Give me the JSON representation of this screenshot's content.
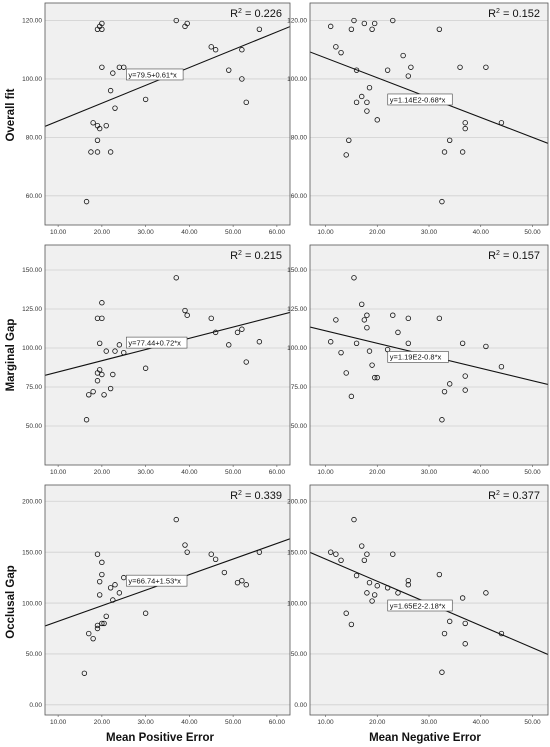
{
  "chart_data": [
    {
      "type": "scatter",
      "row": 0,
      "col": 0,
      "r2": "0.226",
      "equation": "y=79.5+0.61*x",
      "xlim": [
        7,
        63
      ],
      "ylim": [
        50,
        126
      ],
      "xticks": [
        10,
        20,
        30,
        40,
        50,
        60
      ],
      "yticks": [
        60,
        80,
        100,
        120
      ],
      "fit": [
        79.5,
        0.61
      ],
      "x": [
        16.5,
        17.5,
        18,
        19,
        19,
        19,
        19,
        19.5,
        19.5,
        20,
        20,
        20,
        21,
        22,
        22,
        22.5,
        23,
        24,
        25,
        30,
        37,
        39,
        39.5,
        45,
        46,
        49,
        52,
        52,
        53,
        56
      ],
      "y": [
        58,
        75,
        85,
        75,
        79,
        84,
        117,
        118,
        83,
        104,
        117,
        119,
        84,
        75,
        96,
        102,
        90,
        104,
        104,
        93,
        120,
        118,
        119,
        111,
        110,
        103,
        110,
        100,
        92,
        117
      ]
    },
    {
      "type": "scatter",
      "row": 0,
      "col": 1,
      "r2": "0.152",
      "equation": "y=1.14E2-0.68*x",
      "xlim": [
        7,
        53
      ],
      "ylim": [
        50,
        126
      ],
      "xticks": [
        10,
        20,
        30,
        40,
        50
      ],
      "yticks": [
        60,
        80,
        100,
        120
      ],
      "fit": [
        114,
        -0.68
      ],
      "x": [
        11,
        12,
        13,
        14,
        14.5,
        15,
        15.5,
        16,
        16,
        17,
        17.5,
        18,
        18,
        18.5,
        19,
        19.5,
        20,
        22,
        23,
        25,
        26,
        26.5,
        32,
        32.5,
        33,
        34,
        36,
        36.5,
        37,
        37,
        41,
        44
      ],
      "y": [
        118,
        111,
        109,
        74,
        79,
        117,
        120,
        92,
        103,
        94,
        119,
        89,
        92,
        97,
        117,
        119,
        86,
        103,
        120,
        108,
        101,
        104,
        117,
        58,
        75,
        79,
        104,
        75,
        83,
        85,
        104,
        85
      ]
    },
    {
      "type": "scatter",
      "row": 1,
      "col": 0,
      "r2": "0.215",
      "equation": "y=77.44+0.72*x",
      "xlim": [
        7,
        63
      ],
      "ylim": [
        25,
        166
      ],
      "xticks": [
        10,
        20,
        30,
        40,
        50,
        60
      ],
      "yticks": [
        50,
        75,
        100,
        125,
        150
      ],
      "fit": [
        77.44,
        0.72
      ],
      "x": [
        16.5,
        17,
        18,
        19,
        19,
        19,
        19.5,
        19.5,
        20,
        20,
        20,
        20.5,
        21,
        22,
        22.5,
        23,
        24,
        25,
        30,
        37,
        39,
        39.5,
        45,
        46,
        49,
        51,
        52,
        53,
        56
      ],
      "y": [
        54,
        70,
        72,
        79,
        84,
        119,
        86,
        103,
        119,
        129,
        83,
        70,
        98,
        74,
        83,
        98,
        102,
        97,
        87,
        145,
        124,
        121,
        119,
        110,
        102,
        110,
        112,
        91,
        104
      ]
    },
    {
      "type": "scatter",
      "row": 1,
      "col": 1,
      "r2": "0.157",
      "equation": "y=1.19E2-0.8*x",
      "xlim": [
        7,
        53
      ],
      "ylim": [
        25,
        166
      ],
      "xticks": [
        10,
        20,
        30,
        40,
        50
      ],
      "yticks": [
        50,
        75,
        100,
        125,
        150
      ],
      "fit": [
        119,
        -0.8
      ],
      "x": [
        11,
        12,
        13,
        14,
        15,
        15.5,
        16,
        17,
        17.5,
        18,
        18,
        18.5,
        19,
        19.5,
        20,
        22,
        23,
        24,
        26,
        26,
        32,
        32.5,
        33,
        34,
        36.5,
        37,
        37,
        41,
        44
      ],
      "y": [
        104,
        118,
        97,
        84,
        69,
        145,
        103,
        128,
        118,
        121,
        113,
        98,
        89,
        81,
        81,
        99,
        121,
        110,
        119,
        103,
        119,
        54,
        72,
        77,
        103,
        82,
        73,
        101,
        88
      ]
    },
    {
      "type": "scatter",
      "row": 2,
      "col": 0,
      "r2": "0.339",
      "equation": "y=66.74+1.53*x",
      "xlim": [
        7,
        63
      ],
      "ylim": [
        -10,
        216
      ],
      "xticks": [
        10,
        20,
        30,
        40,
        50,
        60
      ],
      "yticks": [
        0,
        50,
        100,
        150,
        200
      ],
      "fit": [
        66.74,
        1.53
      ],
      "x": [
        16,
        17,
        18,
        19,
        19,
        19,
        19.5,
        19.5,
        20,
        20,
        20,
        20.5,
        21,
        22,
        22.5,
        23,
        24,
        25,
        30,
        37,
        39,
        39.5,
        45,
        46,
        48,
        51,
        52,
        53,
        56
      ],
      "y": [
        31,
        70,
        65,
        148,
        75,
        78,
        121,
        108,
        128,
        140,
        80,
        80,
        87,
        115,
        103,
        118,
        110,
        125,
        90,
        182,
        157,
        150,
        148,
        143,
        130,
        120,
        122,
        118,
        150
      ]
    },
    {
      "type": "scatter",
      "row": 2,
      "col": 1,
      "r2": "0.377",
      "equation": "y=1.65E2-2.18*x",
      "xlim": [
        7,
        53
      ],
      "ylim": [
        -10,
        216
      ],
      "xticks": [
        10,
        20,
        30,
        40,
        50
      ],
      "yticks": [
        0,
        50,
        100,
        150,
        200
      ],
      "fit": [
        165,
        -2.18
      ],
      "x": [
        11,
        12,
        13,
        14,
        15,
        15.5,
        16,
        17,
        17.5,
        18,
        18,
        18.5,
        19,
        19.5,
        20,
        22,
        23,
        24,
        26,
        26,
        32,
        32.5,
        33,
        34,
        36.5,
        37,
        37,
        41,
        44
      ],
      "y": [
        150,
        148,
        142,
        90,
        79,
        182,
        127,
        156,
        142,
        148,
        110,
        120,
        102,
        108,
        117,
        115,
        148,
        110,
        118,
        122,
        128,
        32,
        70,
        82,
        105,
        80,
        60,
        110,
        70
      ]
    }
  ],
  "row_labels": [
    "Overall fit",
    "Marginal Gap",
    "Occlusal Gap"
  ],
  "col_labels": [
    "Mean Positive Error",
    "Mean Negative Error"
  ],
  "colors": {
    "plot_bg": "#f0f0f0",
    "grid": "#cfcfcf",
    "border": "#555555",
    "marker": "#111111",
    "line": "#111111"
  }
}
